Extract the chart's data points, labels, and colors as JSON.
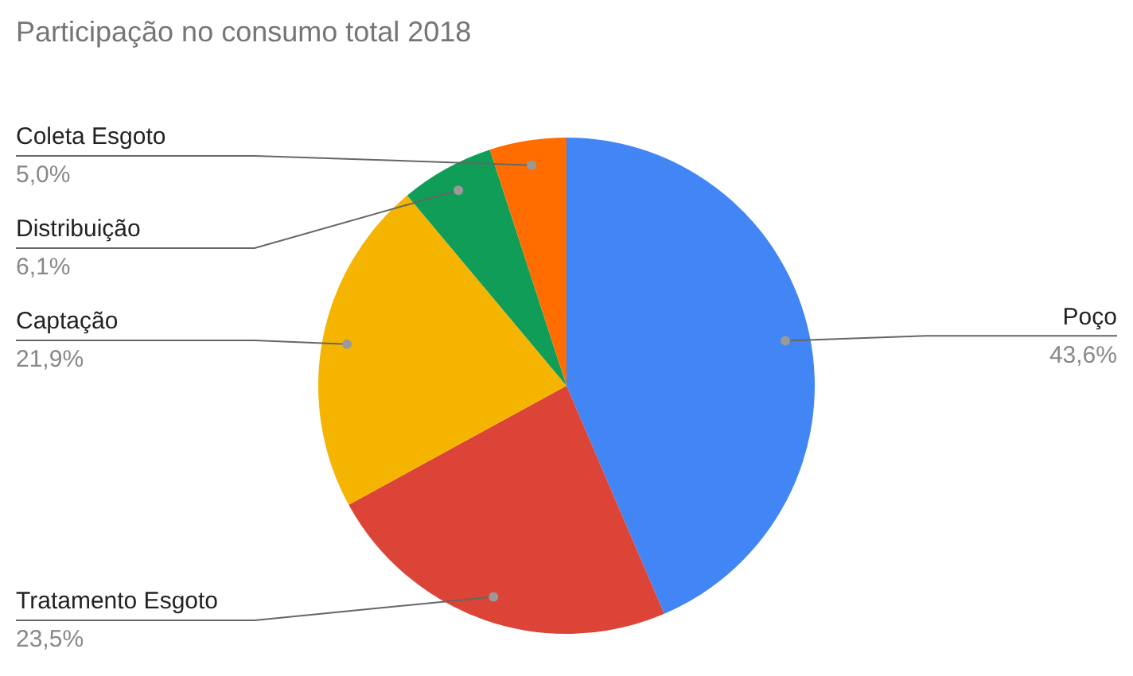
{
  "chart_data": {
    "type": "pie",
    "title": "Participação no consumo total 2018",
    "categories": [
      "Poço",
      "Tratamento Esgoto",
      "Captação",
      "Distribuição",
      "Coleta Esgoto"
    ],
    "values": [
      43.6,
      23.5,
      21.9,
      6.1,
      5.0
    ],
    "colors": [
      "#4285f4",
      "#db4437",
      "#f4b400",
      "#0f9d58",
      "#ff6d01"
    ],
    "value_labels": [
      "43,6%",
      "23,5%",
      "21,9%",
      "6,1%",
      "5,0%"
    ]
  }
}
